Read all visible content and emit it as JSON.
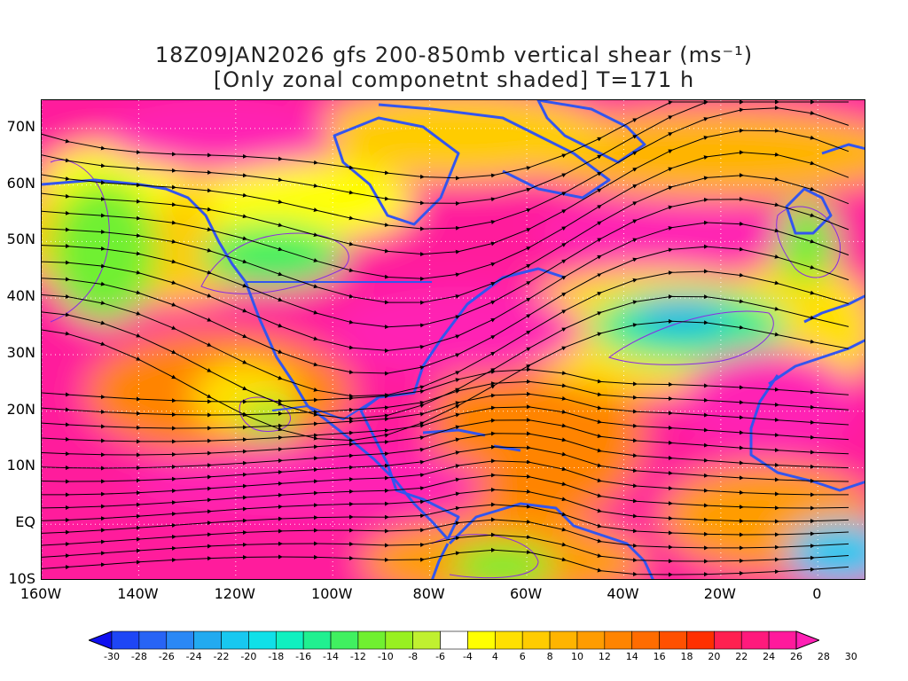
{
  "title": {
    "line1": "18Z09JAN2026 gfs 200-850mb vertical shear (ms⁻¹)",
    "line2": "[Only zonal componetnt shaded] T=171 h"
  },
  "map": {
    "lat_labels": [
      {
        "text": "70N",
        "lat": 70
      },
      {
        "text": "60N",
        "lat": 60
      },
      {
        "text": "50N",
        "lat": 50
      },
      {
        "text": "40N",
        "lat": 40
      },
      {
        "text": "30N",
        "lat": 30
      },
      {
        "text": "20N",
        "lat": 20
      },
      {
        "text": "10N",
        "lat": 10
      },
      {
        "text": "EQ",
        "lat": 0
      },
      {
        "text": "10S",
        "lat": -10
      }
    ],
    "lon_labels": [
      {
        "text": "160W",
        "lon": -160
      },
      {
        "text": "140W",
        "lon": -140
      },
      {
        "text": "120W",
        "lon": -120
      },
      {
        "text": "100W",
        "lon": -100
      },
      {
        "text": "80W",
        "lon": -80
      },
      {
        "text": "60W",
        "lon": -60
      },
      {
        "text": "40W",
        "lon": -40
      },
      {
        "text": "20W",
        "lon": -20
      },
      {
        "text": "0",
        "lon": 0
      }
    ],
    "lon_range": [
      -160,
      10
    ],
    "lat_range": [
      -10,
      75
    ],
    "grid": "dotted",
    "coastline_color": "#3355ee",
    "contour_color": "#8a2be2",
    "streamline_color": "#000000"
  },
  "colorbar": {
    "labels": [
      "-30",
      "-28",
      "-26",
      "-24",
      "-22",
      "-20",
      "-18",
      "-16",
      "-14",
      "-12",
      "-10",
      "-8",
      "-6",
      "-4",
      "4",
      "6",
      "8",
      "10",
      "12",
      "14",
      "16",
      "18",
      "20",
      "22",
      "24",
      "26",
      "28",
      "30"
    ],
    "colors": [
      "#1010f0",
      "#1e46f5",
      "#2864f5",
      "#2a88f5",
      "#22aaf0",
      "#18c8f0",
      "#10e0e8",
      "#10f0c0",
      "#20f090",
      "#40f060",
      "#70f030",
      "#98f020",
      "#c0f030",
      "#ffffff",
      "#ffff00",
      "#ffe000",
      "#ffcc00",
      "#ffb400",
      "#ff9c00",
      "#ff8400",
      "#ff6c00",
      "#ff5000",
      "#ff3000",
      "#ff2050",
      "#ff1a7c",
      "#ff1a9c",
      "#ff20b4"
    ]
  }
}
